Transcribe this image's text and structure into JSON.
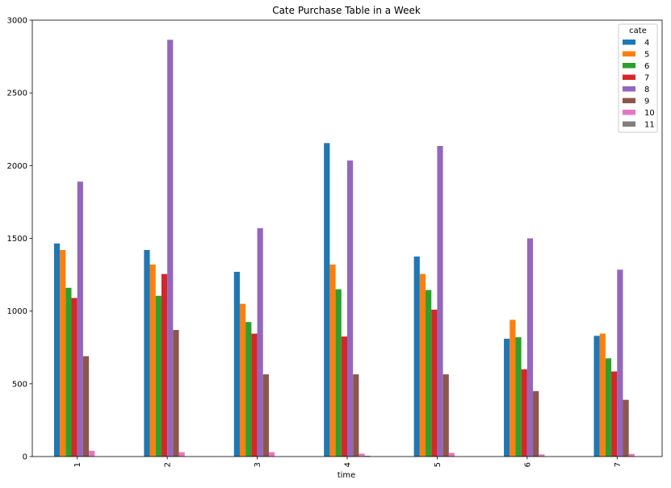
{
  "chart_data": {
    "type": "bar",
    "title": "Cate Purchase Table in a Week",
    "xlabel": "time",
    "ylabel": "",
    "categories": [
      "1",
      "2",
      "3",
      "4",
      "5",
      "6",
      "7"
    ],
    "ylim": [
      0,
      3000
    ],
    "yticks": [
      0,
      500,
      1000,
      1500,
      2000,
      2500,
      3000
    ],
    "grid": false,
    "legend": {
      "title": "cate",
      "placement": "top-right"
    },
    "series": [
      {
        "name": "4",
        "color": "#1f77b4",
        "values": [
          1465,
          1420,
          1270,
          2155,
          1375,
          810,
          830
        ]
      },
      {
        "name": "5",
        "color": "#ff7f0e",
        "values": [
          1420,
          1320,
          1050,
          1320,
          1255,
          940,
          845
        ]
      },
      {
        "name": "6",
        "color": "#2ca02c",
        "values": [
          1160,
          1105,
          925,
          1150,
          1145,
          820,
          675
        ]
      },
      {
        "name": "7",
        "color": "#d62728",
        "values": [
          1090,
          1255,
          845,
          825,
          1010,
          600,
          585
        ]
      },
      {
        "name": "8",
        "color": "#9467bd",
        "values": [
          1890,
          2865,
          1570,
          2035,
          2135,
          1500,
          1285
        ]
      },
      {
        "name": "9",
        "color": "#8c564b",
        "values": [
          690,
          870,
          565,
          565,
          565,
          450,
          390
        ]
      },
      {
        "name": "10",
        "color": "#e377c2",
        "values": [
          40,
          30,
          30,
          20,
          25,
          15,
          18
        ]
      },
      {
        "name": "11",
        "color": "#7f7f7f",
        "values": [
          0,
          0,
          0,
          5,
          0,
          0,
          0
        ]
      }
    ]
  }
}
